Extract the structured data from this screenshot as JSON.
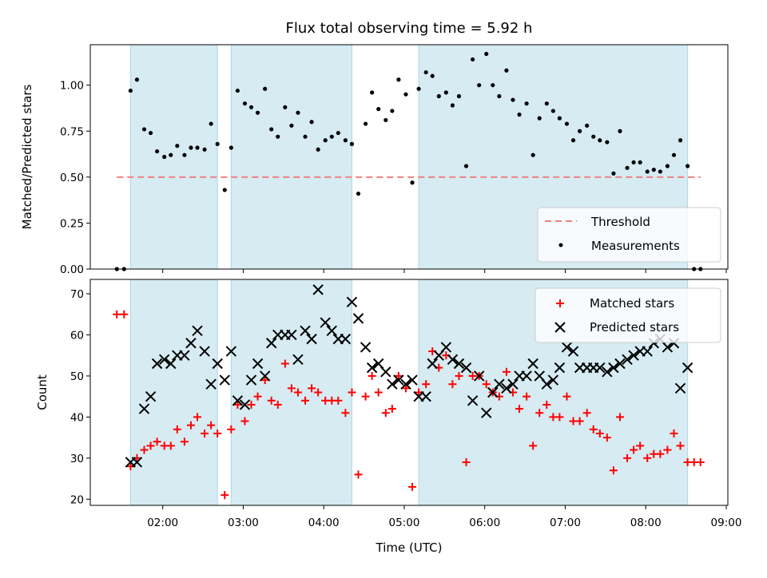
{
  "chart_data": {
    "type": "scatter",
    "title": "Flux total observing time = 5.92 h",
    "xlabel": "Time (UTC)",
    "xticks": [
      "02:00",
      "03:00",
      "04:00",
      "05:00",
      "06:00",
      "07:00",
      "08:00",
      "09:00"
    ],
    "xlim_hours": [
      1.1,
      9.02
    ],
    "shaded_intervals_hours": [
      [
        1.6,
        2.68
      ],
      [
        2.85,
        4.35
      ],
      [
        5.18,
        8.52
      ]
    ],
    "colors": {
      "shade": "#add8e6",
      "threshold": "#f08080",
      "matched": "#ff0000",
      "predicted": "#000000",
      "measurement": "#000000"
    },
    "top_panel": {
      "ylabel": "Matched/Predicted stars",
      "ylim": [
        0,
        1.22
      ],
      "yticks": [
        "0.00",
        "0.25",
        "0.50",
        "0.75",
        "1.00"
      ],
      "threshold": {
        "name": "Threshold",
        "value": 0.5,
        "x_range": [
          1.43,
          8.68
        ]
      },
      "legend": [
        "Threshold",
        "Measurements"
      ],
      "legend_loc": "lower right",
      "series": [
        {
          "name": "Measurements",
          "points": [
            [
              1.43,
              0.0
            ],
            [
              1.52,
              0.0
            ],
            [
              1.6,
              0.97
            ],
            [
              1.68,
              1.03
            ],
            [
              1.77,
              0.76
            ],
            [
              1.85,
              0.74
            ],
            [
              1.93,
              0.64
            ],
            [
              2.02,
              0.61
            ],
            [
              2.1,
              0.62
            ],
            [
              2.18,
              0.67
            ],
            [
              2.27,
              0.62
            ],
            [
              2.35,
              0.66
            ],
            [
              2.43,
              0.66
            ],
            [
              2.52,
              0.65
            ],
            [
              2.6,
              0.79
            ],
            [
              2.68,
              0.68
            ],
            [
              2.77,
              0.43
            ],
            [
              2.85,
              0.66
            ],
            [
              2.93,
              0.97
            ],
            [
              3.02,
              0.9
            ],
            [
              3.1,
              0.88
            ],
            [
              3.18,
              0.85
            ],
            [
              3.27,
              0.98
            ],
            [
              3.35,
              0.76
            ],
            [
              3.43,
              0.72
            ],
            [
              3.52,
              0.88
            ],
            [
              3.6,
              0.78
            ],
            [
              3.68,
              0.85
            ],
            [
              3.77,
              0.72
            ],
            [
              3.85,
              0.8
            ],
            [
              3.93,
              0.65
            ],
            [
              4.02,
              0.7
            ],
            [
              4.1,
              0.72
            ],
            [
              4.18,
              0.74
            ],
            [
              4.27,
              0.7
            ],
            [
              4.35,
              0.68
            ],
            [
              4.43,
              0.41
            ],
            [
              4.52,
              0.79
            ],
            [
              4.6,
              0.96
            ],
            [
              4.68,
              0.87
            ],
            [
              4.77,
              0.81
            ],
            [
              4.85,
              0.86
            ],
            [
              4.93,
              1.03
            ],
            [
              5.02,
              0.95
            ],
            [
              5.1,
              0.47
            ],
            [
              5.18,
              0.98
            ],
            [
              5.27,
              1.07
            ],
            [
              5.35,
              1.05
            ],
            [
              5.43,
              0.94
            ],
            [
              5.52,
              0.96
            ],
            [
              5.6,
              0.89
            ],
            [
              5.68,
              0.94
            ],
            [
              5.77,
              0.56
            ],
            [
              5.85,
              1.14
            ],
            [
              5.93,
              1.0
            ],
            [
              6.02,
              1.17
            ],
            [
              6.1,
              1.0
            ],
            [
              6.18,
              0.94
            ],
            [
              6.27,
              1.08
            ],
            [
              6.35,
              0.92
            ],
            [
              6.43,
              0.84
            ],
            [
              6.52,
              0.9
            ],
            [
              6.6,
              0.62
            ],
            [
              6.68,
              0.82
            ],
            [
              6.77,
              0.9
            ],
            [
              6.85,
              0.86
            ],
            [
              6.93,
              0.82
            ],
            [
              7.02,
              0.79
            ],
            [
              7.1,
              0.7
            ],
            [
              7.18,
              0.75
            ],
            [
              7.27,
              0.78
            ],
            [
              7.35,
              0.72
            ],
            [
              7.43,
              0.7
            ],
            [
              7.52,
              0.69
            ],
            [
              7.6,
              0.52
            ],
            [
              7.68,
              0.75
            ],
            [
              7.77,
              0.55
            ],
            [
              7.85,
              0.58
            ],
            [
              7.93,
              0.58
            ],
            [
              8.02,
              0.53
            ],
            [
              8.1,
              0.54
            ],
            [
              8.18,
              0.53
            ],
            [
              8.27,
              0.56
            ],
            [
              8.35,
              0.62
            ],
            [
              8.43,
              0.7
            ],
            [
              8.52,
              0.56
            ],
            [
              8.6,
              0.0
            ],
            [
              8.68,
              0.0
            ]
          ]
        }
      ]
    },
    "bottom_panel": {
      "ylabel": "Count",
      "ylim": [
        18.5,
        73.5
      ],
      "yticks": [
        "20",
        "30",
        "40",
        "50",
        "60",
        "70"
      ],
      "legend": [
        "Matched stars",
        "Predicted stars"
      ],
      "legend_loc": "upper right",
      "series": [
        {
          "name": "Matched stars",
          "marker": "plus",
          "points": [
            [
              1.43,
              65
            ],
            [
              1.52,
              65
            ],
            [
              1.6,
              28
            ],
            [
              1.68,
              30
            ],
            [
              1.77,
              32
            ],
            [
              1.85,
              33
            ],
            [
              1.93,
              34
            ],
            [
              2.02,
              33
            ],
            [
              2.1,
              33
            ],
            [
              2.18,
              37
            ],
            [
              2.27,
              34
            ],
            [
              2.35,
              38
            ],
            [
              2.43,
              40
            ],
            [
              2.52,
              36
            ],
            [
              2.6,
              38
            ],
            [
              2.68,
              36
            ],
            [
              2.77,
              21
            ],
            [
              2.85,
              37
            ],
            [
              2.93,
              43
            ],
            [
              3.02,
              39
            ],
            [
              3.1,
              43
            ],
            [
              3.18,
              45
            ],
            [
              3.27,
              49
            ],
            [
              3.35,
              44
            ],
            [
              3.43,
              43
            ],
            [
              3.52,
              53
            ],
            [
              3.6,
              47
            ],
            [
              3.68,
              46
            ],
            [
              3.77,
              44
            ],
            [
              3.85,
              47
            ],
            [
              3.93,
              46
            ],
            [
              4.02,
              44
            ],
            [
              4.1,
              44
            ],
            [
              4.18,
              44
            ],
            [
              4.27,
              41
            ],
            [
              4.35,
              46
            ],
            [
              4.43,
              26
            ],
            [
              4.52,
              45
            ],
            [
              4.6,
              50
            ],
            [
              4.68,
              46
            ],
            [
              4.77,
              41
            ],
            [
              4.85,
              42
            ],
            [
              4.93,
              50
            ],
            [
              5.02,
              47
            ],
            [
              5.1,
              23
            ],
            [
              5.18,
              46
            ],
            [
              5.27,
              48
            ],
            [
              5.35,
              56
            ],
            [
              5.43,
              52
            ],
            [
              5.52,
              55
            ],
            [
              5.6,
              48
            ],
            [
              5.68,
              50
            ],
            [
              5.77,
              29
            ],
            [
              5.85,
              50
            ],
            [
              5.93,
              50
            ],
            [
              6.02,
              48
            ],
            [
              6.1,
              46
            ],
            [
              6.18,
              45
            ],
            [
              6.27,
              51
            ],
            [
              6.35,
              46
            ],
            [
              6.43,
              42
            ],
            [
              6.52,
              45
            ],
            [
              6.6,
              33
            ],
            [
              6.68,
              41
            ],
            [
              6.77,
              43
            ],
            [
              6.85,
              40
            ],
            [
              6.93,
              40
            ],
            [
              7.02,
              45
            ],
            [
              7.1,
              39
            ],
            [
              7.18,
              39
            ],
            [
              7.27,
              41
            ],
            [
              7.35,
              37
            ],
            [
              7.43,
              36
            ],
            [
              7.52,
              35
            ],
            [
              7.6,
              27
            ],
            [
              7.68,
              40
            ],
            [
              7.77,
              30
            ],
            [
              7.85,
              32
            ],
            [
              7.93,
              33
            ],
            [
              8.02,
              30
            ],
            [
              8.1,
              31
            ],
            [
              8.18,
              31
            ],
            [
              8.27,
              32
            ],
            [
              8.35,
              36
            ],
            [
              8.43,
              33
            ],
            [
              8.52,
              29
            ],
            [
              8.6,
              29
            ],
            [
              8.68,
              29
            ]
          ]
        },
        {
          "name": "Predicted stars",
          "marker": "x",
          "points": [
            [
              1.6,
              29
            ],
            [
              1.68,
              29
            ],
            [
              1.77,
              42
            ],
            [
              1.85,
              45
            ],
            [
              1.93,
              53
            ],
            [
              2.02,
              54
            ],
            [
              2.1,
              53
            ],
            [
              2.18,
              55
            ],
            [
              2.27,
              55
            ],
            [
              2.35,
              58
            ],
            [
              2.43,
              61
            ],
            [
              2.52,
              56
            ],
            [
              2.6,
              48
            ],
            [
              2.68,
              53
            ],
            [
              2.77,
              49
            ],
            [
              2.85,
              56
            ],
            [
              2.93,
              44
            ],
            [
              3.02,
              43
            ],
            [
              3.1,
              49
            ],
            [
              3.18,
              53
            ],
            [
              3.27,
              50
            ],
            [
              3.35,
              58
            ],
            [
              3.43,
              60
            ],
            [
              3.52,
              60
            ],
            [
              3.6,
              60
            ],
            [
              3.68,
              54
            ],
            [
              3.77,
              61
            ],
            [
              3.85,
              59
            ],
            [
              3.93,
              71
            ],
            [
              4.02,
              63
            ],
            [
              4.1,
              61
            ],
            [
              4.18,
              59
            ],
            [
              4.27,
              59
            ],
            [
              4.35,
              68
            ],
            [
              4.43,
              64
            ],
            [
              4.52,
              57
            ],
            [
              4.6,
              52
            ],
            [
              4.68,
              53
            ],
            [
              4.77,
              51
            ],
            [
              4.85,
              48
            ],
            [
              4.93,
              49
            ],
            [
              5.02,
              48
            ],
            [
              5.1,
              49
            ],
            [
              5.18,
              45
            ],
            [
              5.27,
              45
            ],
            [
              5.35,
              53
            ],
            [
              5.43,
              55
            ],
            [
              5.52,
              57
            ],
            [
              5.6,
              54
            ],
            [
              5.68,
              53
            ],
            [
              5.77,
              52
            ],
            [
              5.85,
              44
            ],
            [
              5.93,
              50
            ],
            [
              6.02,
              41
            ],
            [
              6.1,
              46
            ],
            [
              6.18,
              48
            ],
            [
              6.27,
              47
            ],
            [
              6.35,
              48
            ],
            [
              6.43,
              50
            ],
            [
              6.52,
              50
            ],
            [
              6.6,
              53
            ],
            [
              6.68,
              50
            ],
            [
              6.77,
              48
            ],
            [
              6.85,
              49
            ],
            [
              6.93,
              52
            ],
            [
              7.02,
              57
            ],
            [
              7.1,
              56
            ],
            [
              7.18,
              52
            ],
            [
              7.27,
              52
            ],
            [
              7.35,
              52
            ],
            [
              7.43,
              52
            ],
            [
              7.52,
              51
            ],
            [
              7.6,
              52
            ],
            [
              7.68,
              53
            ],
            [
              7.77,
              54
            ],
            [
              7.85,
              55
            ],
            [
              7.93,
              56
            ],
            [
              8.02,
              56
            ],
            [
              8.1,
              58
            ],
            [
              8.18,
              59
            ],
            [
              8.27,
              57
            ],
            [
              8.35,
              58
            ],
            [
              8.43,
              47
            ],
            [
              8.52,
              52
            ]
          ]
        }
      ]
    }
  }
}
